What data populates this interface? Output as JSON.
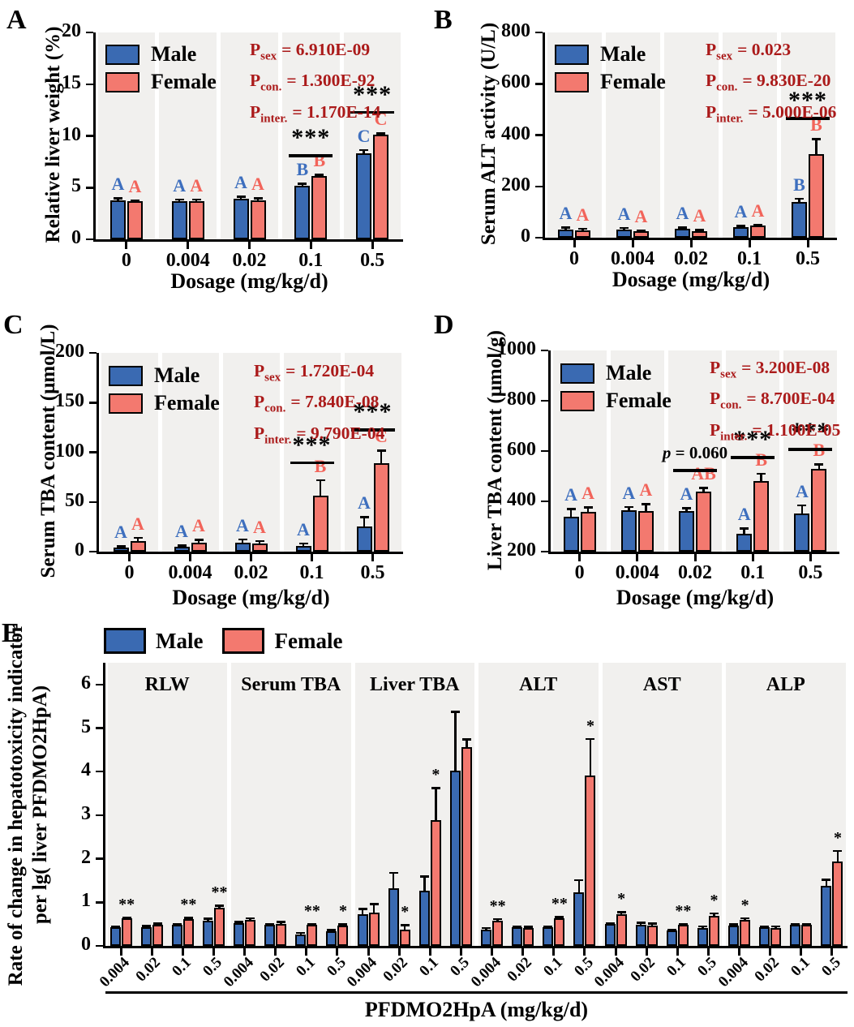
{
  "legend": {
    "male": "Male",
    "female": "Female"
  },
  "colors": {
    "male_bar": "#3A6AB2",
    "female_bar": "#F3796F",
    "male_letter": "#3E6FBE",
    "female_letter": "#F2645A",
    "stats_text": "#AB1A1A",
    "band_bg": "#F1F0EE",
    "axis": "#000000"
  },
  "chart_data": [
    {
      "id": "A",
      "panel": "A",
      "type": "bar",
      "ylabel": "Relative liver weight (%)",
      "xlabel": "Dosage (mg/kg/d)",
      "ymin": 0,
      "ymax": 20,
      "yticks": [
        0,
        5,
        10,
        15,
        20
      ],
      "categories": [
        "0",
        "0.004",
        "0.02",
        "0.1",
        "0.5"
      ],
      "series": [
        {
          "name": "Male",
          "values": [
            3.8,
            3.65,
            3.9,
            5.2,
            8.35
          ],
          "errors": [
            0.2,
            0.2,
            0.25,
            0.2,
            0.3
          ],
          "letters": [
            "A",
            "A",
            "A",
            "B",
            "C"
          ]
        },
        {
          "name": "Female",
          "values": [
            3.65,
            3.65,
            3.8,
            6.1,
            10.1
          ],
          "errors": [
            0.15,
            0.2,
            0.2,
            0.15,
            0.15
          ],
          "letters": [
            "A",
            "A",
            "A",
            "B",
            "C"
          ]
        }
      ],
      "stats": [
        {
          "prefix": "P",
          "sub": "sex",
          "text": "= 6.910E-09"
        },
        {
          "prefix": "P",
          "sub": "con.",
          "text": "= 1.300E-92"
        },
        {
          "prefix": "P",
          "sub": "inter.",
          "text": "= 1.170E-14"
        }
      ],
      "sig": [
        {
          "group": 3,
          "stars": "***",
          "line_y": 8.2
        },
        {
          "group": 4,
          "stars": "***",
          "line_y": 12.4
        }
      ],
      "annotations": []
    },
    {
      "id": "B",
      "panel": "B",
      "type": "bar",
      "ylabel": "Serum ALT activity (U/L)",
      "xlabel": "Dosage (mg/kg/d)",
      "ymin": 0,
      "ymax": 800,
      "yticks": [
        0,
        200,
        400,
        600,
        800
      ],
      "categories": [
        "0",
        "0.004",
        "0.02",
        "0.1",
        "0.5"
      ],
      "series": [
        {
          "name": "Male",
          "values": [
            33,
            32,
            35,
            41,
            140
          ],
          "errors": [
            7,
            6,
            6,
            6,
            12
          ],
          "letters": [
            "A",
            "A",
            "A",
            "A",
            "B"
          ]
        },
        {
          "name": "Female",
          "values": [
            29,
            24,
            26,
            46,
            325
          ],
          "errors": [
            6,
            5,
            5,
            6,
            60
          ],
          "letters": [
            "A",
            "A",
            "A",
            "A",
            "B"
          ]
        }
      ],
      "stats": [
        {
          "prefix": "P",
          "sub": "sex",
          "text": "= 0.023"
        },
        {
          "prefix": "P",
          "sub": "con.",
          "text": "= 9.830E-20"
        },
        {
          "prefix": "P",
          "sub": "inter.",
          "text": "= 5.000E-06"
        }
      ],
      "sig": [
        {
          "group": 4,
          "stars": "***",
          "line_y": 470
        }
      ],
      "annotations": []
    },
    {
      "id": "C",
      "panel": "C",
      "type": "bar",
      "ylabel": "Serum TBA content (μmol/L)",
      "xlabel": "Dosage (mg/kg/d)",
      "ymin": 0,
      "ymax": 200,
      "yticks": [
        0,
        50,
        100,
        150,
        200
      ],
      "categories": [
        "0",
        "0.004",
        "0.02",
        "0.1",
        "0.5"
      ],
      "series": [
        {
          "name": "Male",
          "values": [
            4,
            5,
            9,
            6,
            25
          ],
          "errors": [
            1.5,
            1.5,
            3.5,
            2.5,
            10
          ],
          "letters": [
            "A",
            "A",
            "A",
            "A",
            "A"
          ]
        },
        {
          "name": "Female",
          "values": [
            11,
            9,
            8,
            56,
            89
          ],
          "errors": [
            3,
            3,
            3,
            16,
            13
          ],
          "letters": [
            "A",
            "A",
            "A",
            "B",
            "C"
          ]
        }
      ],
      "stats": [
        {
          "prefix": "P",
          "sub": "sex",
          "text": "= 1.720E-04"
        },
        {
          "prefix": "P",
          "sub": "con.",
          "text": "= 7.840E-08"
        },
        {
          "prefix": "P",
          "sub": "inter.",
          "text": "= 9.790E-04"
        }
      ],
      "sig": [
        {
          "group": 3,
          "stars": "***",
          "line_y": 91
        },
        {
          "group": 4,
          "stars": "***",
          "line_y": 124
        }
      ],
      "annotations": []
    },
    {
      "id": "D",
      "panel": "D",
      "type": "bar",
      "ylabel": "Liver TBA content (μmol/g)",
      "xlabel": "Dosage (mg/kg/d)",
      "ymin": 200,
      "ymax": 1000,
      "yticks": [
        200,
        400,
        600,
        800,
        1000
      ],
      "categories": [
        "0",
        "0.004",
        "0.02",
        "0.1",
        "0.5"
      ],
      "series": [
        {
          "name": "Male",
          "values": [
            340,
            365,
            362,
            270,
            352
          ],
          "errors": [
            30,
            14,
            12,
            22,
            32
          ],
          "letters": [
            "A",
            "A",
            "A",
            "A",
            "A"
          ]
        },
        {
          "name": "Female",
          "values": [
            357,
            362,
            440,
            482,
            530
          ],
          "errors": [
            20,
            27,
            14,
            28,
            18
          ],
          "letters": [
            "A",
            "A",
            "AB",
            "B",
            "B"
          ]
        }
      ],
      "stats": [
        {
          "prefix": "P",
          "sub": "sex",
          "text": "= 3.200E-08"
        },
        {
          "prefix": "P",
          "sub": "con.",
          "text": "= 8.700E-04"
        },
        {
          "prefix": "P",
          "sub": "inter.",
          "text": "= 1.100E-05"
        }
      ],
      "sig": [
        {
          "group": 3,
          "stars": "***",
          "line_y": 580
        },
        {
          "group": 4,
          "stars": "***",
          "line_y": 612
        }
      ],
      "annotations": [
        {
          "group": 2,
          "italic": "p",
          "text": " = 0.060",
          "line_y": 528
        }
      ]
    },
    {
      "id": "E",
      "panel": "E",
      "type": "bar",
      "ylabel_lines": [
        "Rate of change in hepatotoxicity indicator",
        "per lg( liver PFDMO2HpA)"
      ],
      "xlabel": "PFDMO2HpA (mg/kg/d)",
      "ymin": 0,
      "ymax": 6.5,
      "yticks": [
        0,
        1,
        2,
        3,
        4,
        5,
        6
      ],
      "sections": [
        {
          "label": "RLW",
          "categories": [
            "0.004",
            "0.02",
            "0.1",
            "0.5"
          ],
          "male": [
            0.42,
            0.43,
            0.48,
            0.58
          ],
          "male_err": [
            0.02,
            0.03,
            0.02,
            0.05
          ],
          "female": [
            0.63,
            0.48,
            0.62,
            0.88
          ],
          "female_err": [
            0.02,
            0.04,
            0.03,
            0.05
          ],
          "sig": [
            "**",
            null,
            "**",
            "**"
          ]
        },
        {
          "label": "Serum TBA",
          "categories": [
            "0.004",
            "0.02",
            "0.1",
            "0.5"
          ],
          "male": [
            0.52,
            0.49,
            0.27,
            0.33
          ],
          "male_err": [
            0.03,
            0.02,
            0.03,
            0.04
          ],
          "female": [
            0.6,
            0.5,
            0.48,
            0.47
          ],
          "female_err": [
            0.04,
            0.05,
            0.02,
            0.03
          ],
          "sig": [
            null,
            null,
            "**",
            "*"
          ]
        },
        {
          "label": "Liver TBA",
          "categories": [
            "0.004",
            "0.02",
            "0.1",
            "0.5"
          ],
          "male": [
            0.72,
            1.33,
            1.27,
            4.03
          ],
          "male_err": [
            0.13,
            0.35,
            0.33,
            1.35
          ],
          "female": [
            0.76,
            0.38,
            2.88,
            4.57
          ],
          "female_err": [
            0.2,
            0.1,
            0.75,
            0.17
          ],
          "sig": [
            null,
            "*",
            "*",
            null
          ]
        },
        {
          "label": "ALT",
          "categories": [
            "0.004",
            "0.02",
            "0.1",
            "0.5"
          ],
          "male": [
            0.38,
            0.42,
            0.42,
            1.23
          ],
          "male_err": [
            0.03,
            0.02,
            0.03,
            0.28
          ],
          "female": [
            0.58,
            0.41,
            0.63,
            3.92
          ],
          "female_err": [
            0.04,
            0.03,
            0.04,
            0.83
          ],
          "sig": [
            "**",
            null,
            "**",
            "*"
          ]
        },
        {
          "label": "AST",
          "categories": [
            "0.004",
            "0.02",
            "0.1",
            "0.5"
          ],
          "male": [
            0.5,
            0.49,
            0.36,
            0.41
          ],
          "male_err": [
            0.03,
            0.05,
            0.02,
            0.04
          ],
          "female": [
            0.72,
            0.46,
            0.48,
            0.68
          ],
          "female_err": [
            0.06,
            0.06,
            0.02,
            0.07
          ],
          "sig": [
            "*",
            null,
            "**",
            "*"
          ]
        },
        {
          "label": "ALP",
          "categories": [
            "0.004",
            "0.02",
            "0.1",
            "0.5"
          ],
          "male": [
            0.46,
            0.43,
            0.48,
            1.37
          ],
          "male_err": [
            0.04,
            0.02,
            0.02,
            0.15
          ],
          "female": [
            0.6,
            0.41,
            0.48,
            1.93
          ],
          "female_err": [
            0.04,
            0.04,
            0.03,
            0.25
          ],
          "sig": [
            "*",
            null,
            null,
            "*"
          ]
        }
      ]
    }
  ]
}
